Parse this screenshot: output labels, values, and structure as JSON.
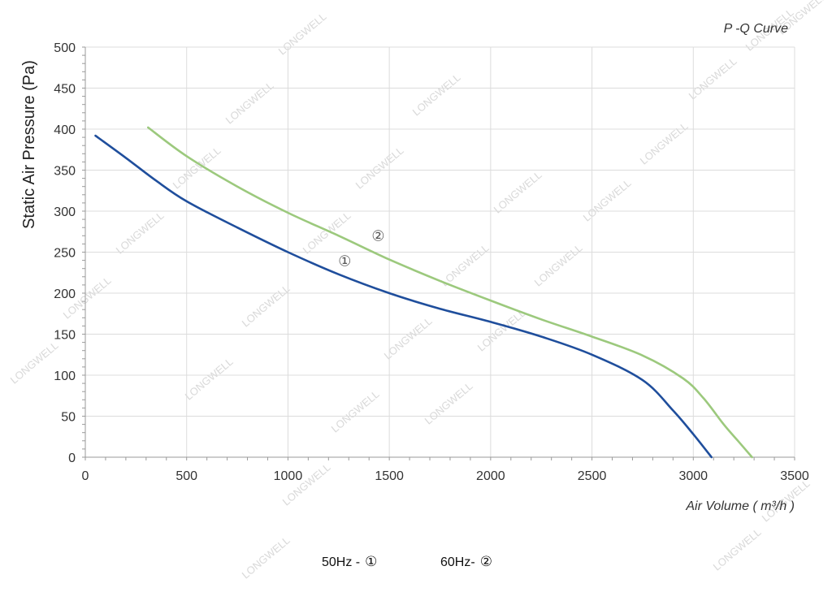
{
  "chart_data": {
    "type": "line",
    "title": "P -Q Curve",
    "xlabel": "Air Volume ( m³/h )",
    "ylabel": "Static Air Pressure  (Pa)",
    "xlim": [
      0,
      3500
    ],
    "ylim": [
      0,
      500
    ],
    "x_ticks": [
      "0",
      "500",
      "1000",
      "1500",
      "2000",
      "2500",
      "3000",
      "3500"
    ],
    "y_ticks": [
      "0",
      "50",
      "100",
      "150",
      "200",
      "250",
      "300",
      "350",
      "400",
      "450",
      "500"
    ],
    "grid": true,
    "series": [
      {
        "name": "①",
        "color": "#1f4e9c",
        "points": [
          [
            50,
            392
          ],
          [
            200,
            365
          ],
          [
            350,
            337
          ],
          [
            500,
            312
          ],
          [
            750,
            280
          ],
          [
            1000,
            250
          ],
          [
            1250,
            223
          ],
          [
            1500,
            200
          ],
          [
            1750,
            181
          ],
          [
            2000,
            165
          ],
          [
            2250,
            147
          ],
          [
            2500,
            125
          ],
          [
            2750,
            94
          ],
          [
            2900,
            57
          ],
          [
            3000,
            28
          ],
          [
            3090,
            0
          ]
        ]
      },
      {
        "name": "②",
        "color": "#9cc97d",
        "points": [
          [
            310,
            402
          ],
          [
            500,
            367
          ],
          [
            750,
            330
          ],
          [
            1000,
            298
          ],
          [
            1250,
            270
          ],
          [
            1500,
            241
          ],
          [
            1750,
            215
          ],
          [
            2000,
            191
          ],
          [
            2250,
            168
          ],
          [
            2500,
            147
          ],
          [
            2750,
            124
          ],
          [
            2950,
            96
          ],
          [
            3050,
            72
          ],
          [
            3150,
            40
          ],
          [
            3220,
            20
          ],
          [
            3290,
            0
          ]
        ]
      }
    ],
    "annotations": [
      {
        "text": "①",
        "x": 1280,
        "y": 239,
        "series": "①"
      },
      {
        "text": "②",
        "x": 1445,
        "y": 270,
        "series": "②"
      }
    ]
  },
  "legend": {
    "item1_label": "50Hz -",
    "item1_symbol": "①",
    "item2_label": "60Hz-",
    "item2_symbol": "②"
  },
  "watermark": "LONGWELL"
}
